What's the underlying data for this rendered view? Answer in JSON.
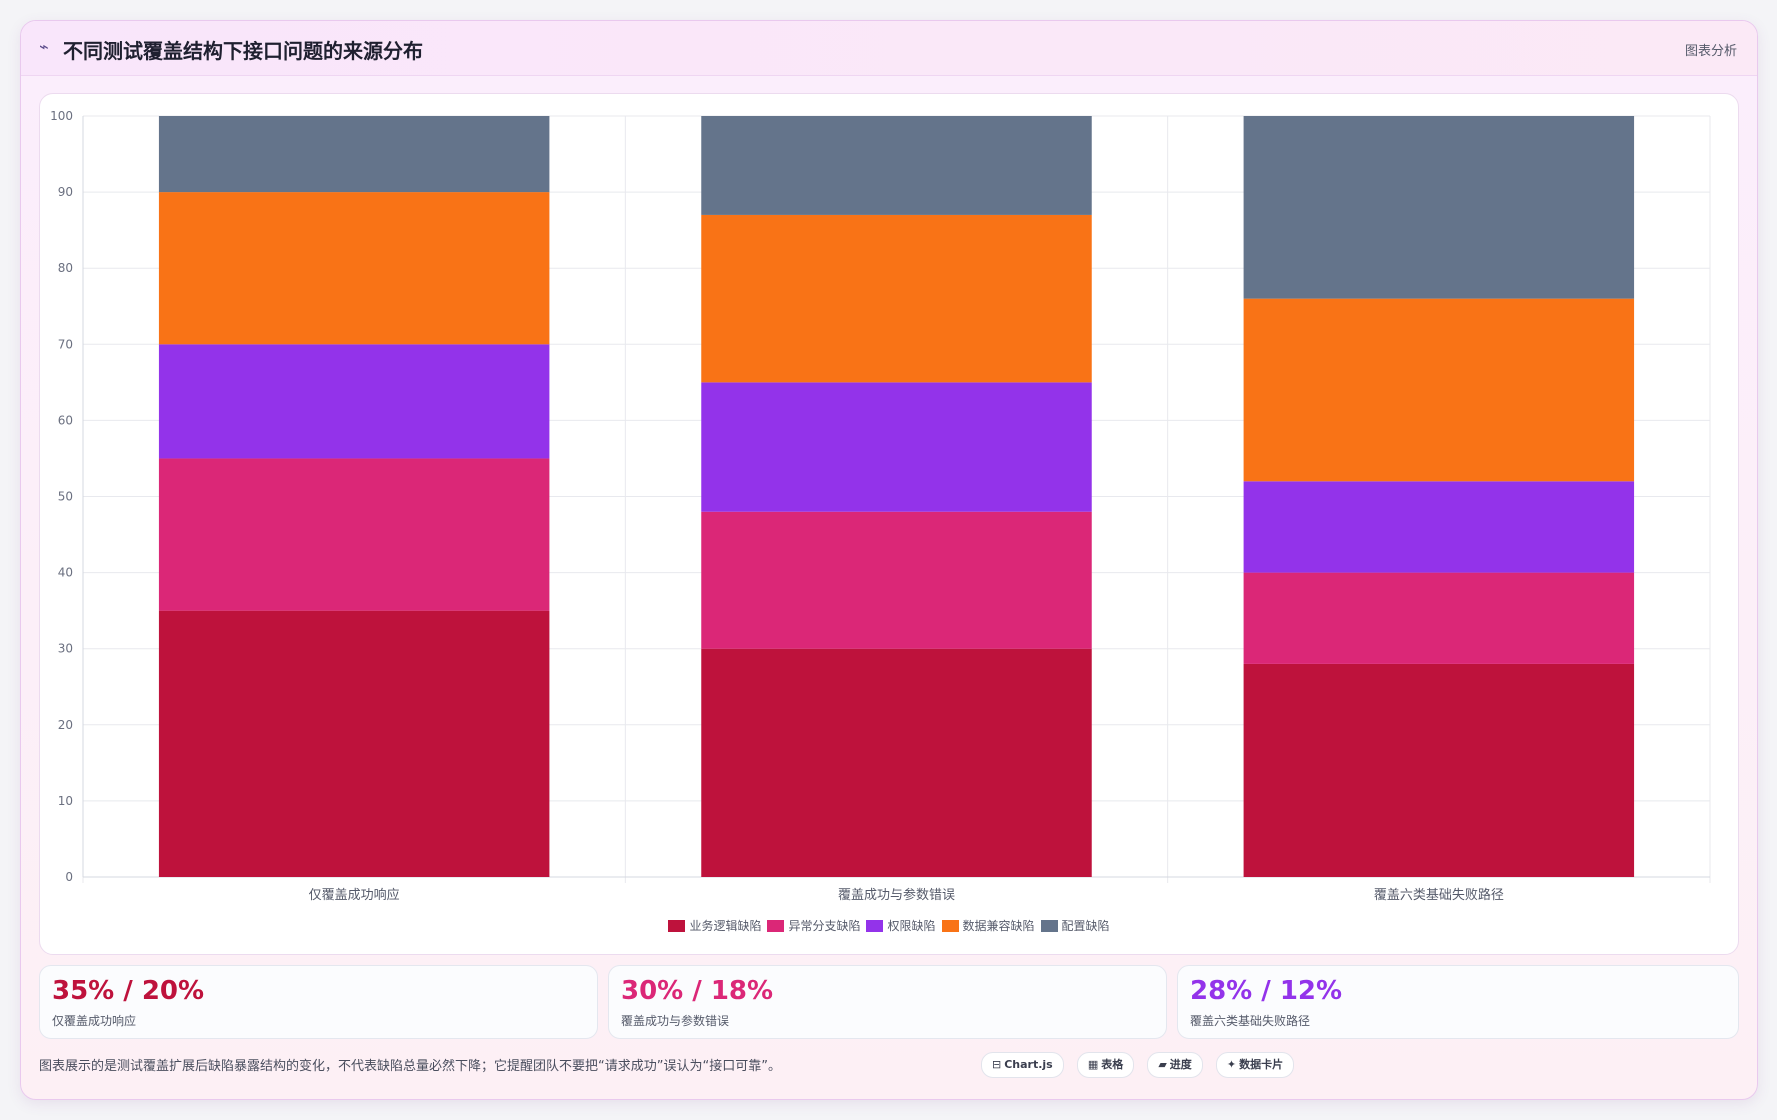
{
  "header": {
    "icon": "wave-icon",
    "title": "不同测试覆盖结构下接口问题的来源分布",
    "tag": "图表分析"
  },
  "chart_data": {
    "type": "bar",
    "stacked": true,
    "title": "",
    "xlabel": "",
    "ylabel": "",
    "ylim": [
      0,
      100
    ],
    "yticks": [
      0,
      10,
      20,
      30,
      40,
      50,
      60,
      70,
      80,
      90,
      100
    ],
    "grid": true,
    "legend_position": "bottom",
    "categories": [
      "仅覆盖成功响应",
      "覆盖成功与参数错误",
      "覆盖六类基础失败路径"
    ],
    "series": [
      {
        "name": "业务逻辑缺陷",
        "color": "#be123c",
        "values": [
          35,
          30,
          28
        ]
      },
      {
        "name": "异常分支缺陷",
        "color": "#db2777",
        "values": [
          20,
          18,
          12
        ]
      },
      {
        "name": "权限缺陷",
        "color": "#9333ea",
        "values": [
          15,
          17,
          12
        ]
      },
      {
        "name": "数据兼容缺陷",
        "color": "#f97316",
        "values": [
          20,
          22,
          24
        ]
      },
      {
        "name": "配置缺陷",
        "color": "#64748b",
        "values": [
          10,
          13,
          24
        ]
      }
    ]
  },
  "stats": [
    {
      "value": "35% / 20%",
      "label": "仅覆盖成功响应",
      "color": "#be123c"
    },
    {
      "value": "30% / 18%",
      "label": "覆盖成功与参数错误",
      "color": "#db2777"
    },
    {
      "value": "28% / 12%",
      "label": "覆盖六类基础失败路径",
      "color": "#9333ea"
    }
  ],
  "footnote": "图表展示的是测试覆盖扩展后缺陷暴露结构的变化，不代表缺陷总量必然下降；它提醒团队不要把“请求成功”误认为“接口可靠”。",
  "chips": [
    {
      "icon": "⊟",
      "label": "Chart.js"
    },
    {
      "icon": "▦",
      "label": "表格"
    },
    {
      "icon": "▰",
      "label": "进度"
    },
    {
      "icon": "✦",
      "label": "数据卡片"
    }
  ]
}
